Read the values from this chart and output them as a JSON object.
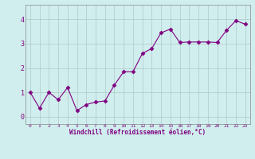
{
  "x": [
    0,
    1,
    2,
    3,
    4,
    5,
    6,
    7,
    8,
    9,
    10,
    11,
    12,
    13,
    14,
    15,
    16,
    17,
    18,
    19,
    20,
    21,
    22,
    23
  ],
  "y": [
    1.0,
    0.35,
    1.0,
    0.7,
    1.2,
    0.25,
    0.5,
    0.6,
    0.65,
    1.3,
    1.85,
    1.85,
    2.6,
    2.8,
    3.45,
    3.6,
    3.05,
    3.07,
    3.07,
    3.07,
    3.05,
    3.55,
    3.95,
    3.8
  ],
  "line_color": "#800080",
  "marker_color": "#800080",
  "bg_color": "#d0eeee",
  "grid_color": "#b0c8c8",
  "xlabel": "Windchill (Refroidissement éolien,°C)",
  "tick_color": "#800080",
  "ylim": [
    -0.3,
    4.6
  ],
  "xlim": [
    -0.5,
    23.5
  ],
  "yticks": [
    0,
    1,
    2,
    3,
    4
  ],
  "xticks": [
    0,
    1,
    2,
    3,
    4,
    5,
    6,
    7,
    8,
    9,
    10,
    11,
    12,
    13,
    14,
    15,
    16,
    17,
    18,
    19,
    20,
    21,
    22,
    23
  ]
}
